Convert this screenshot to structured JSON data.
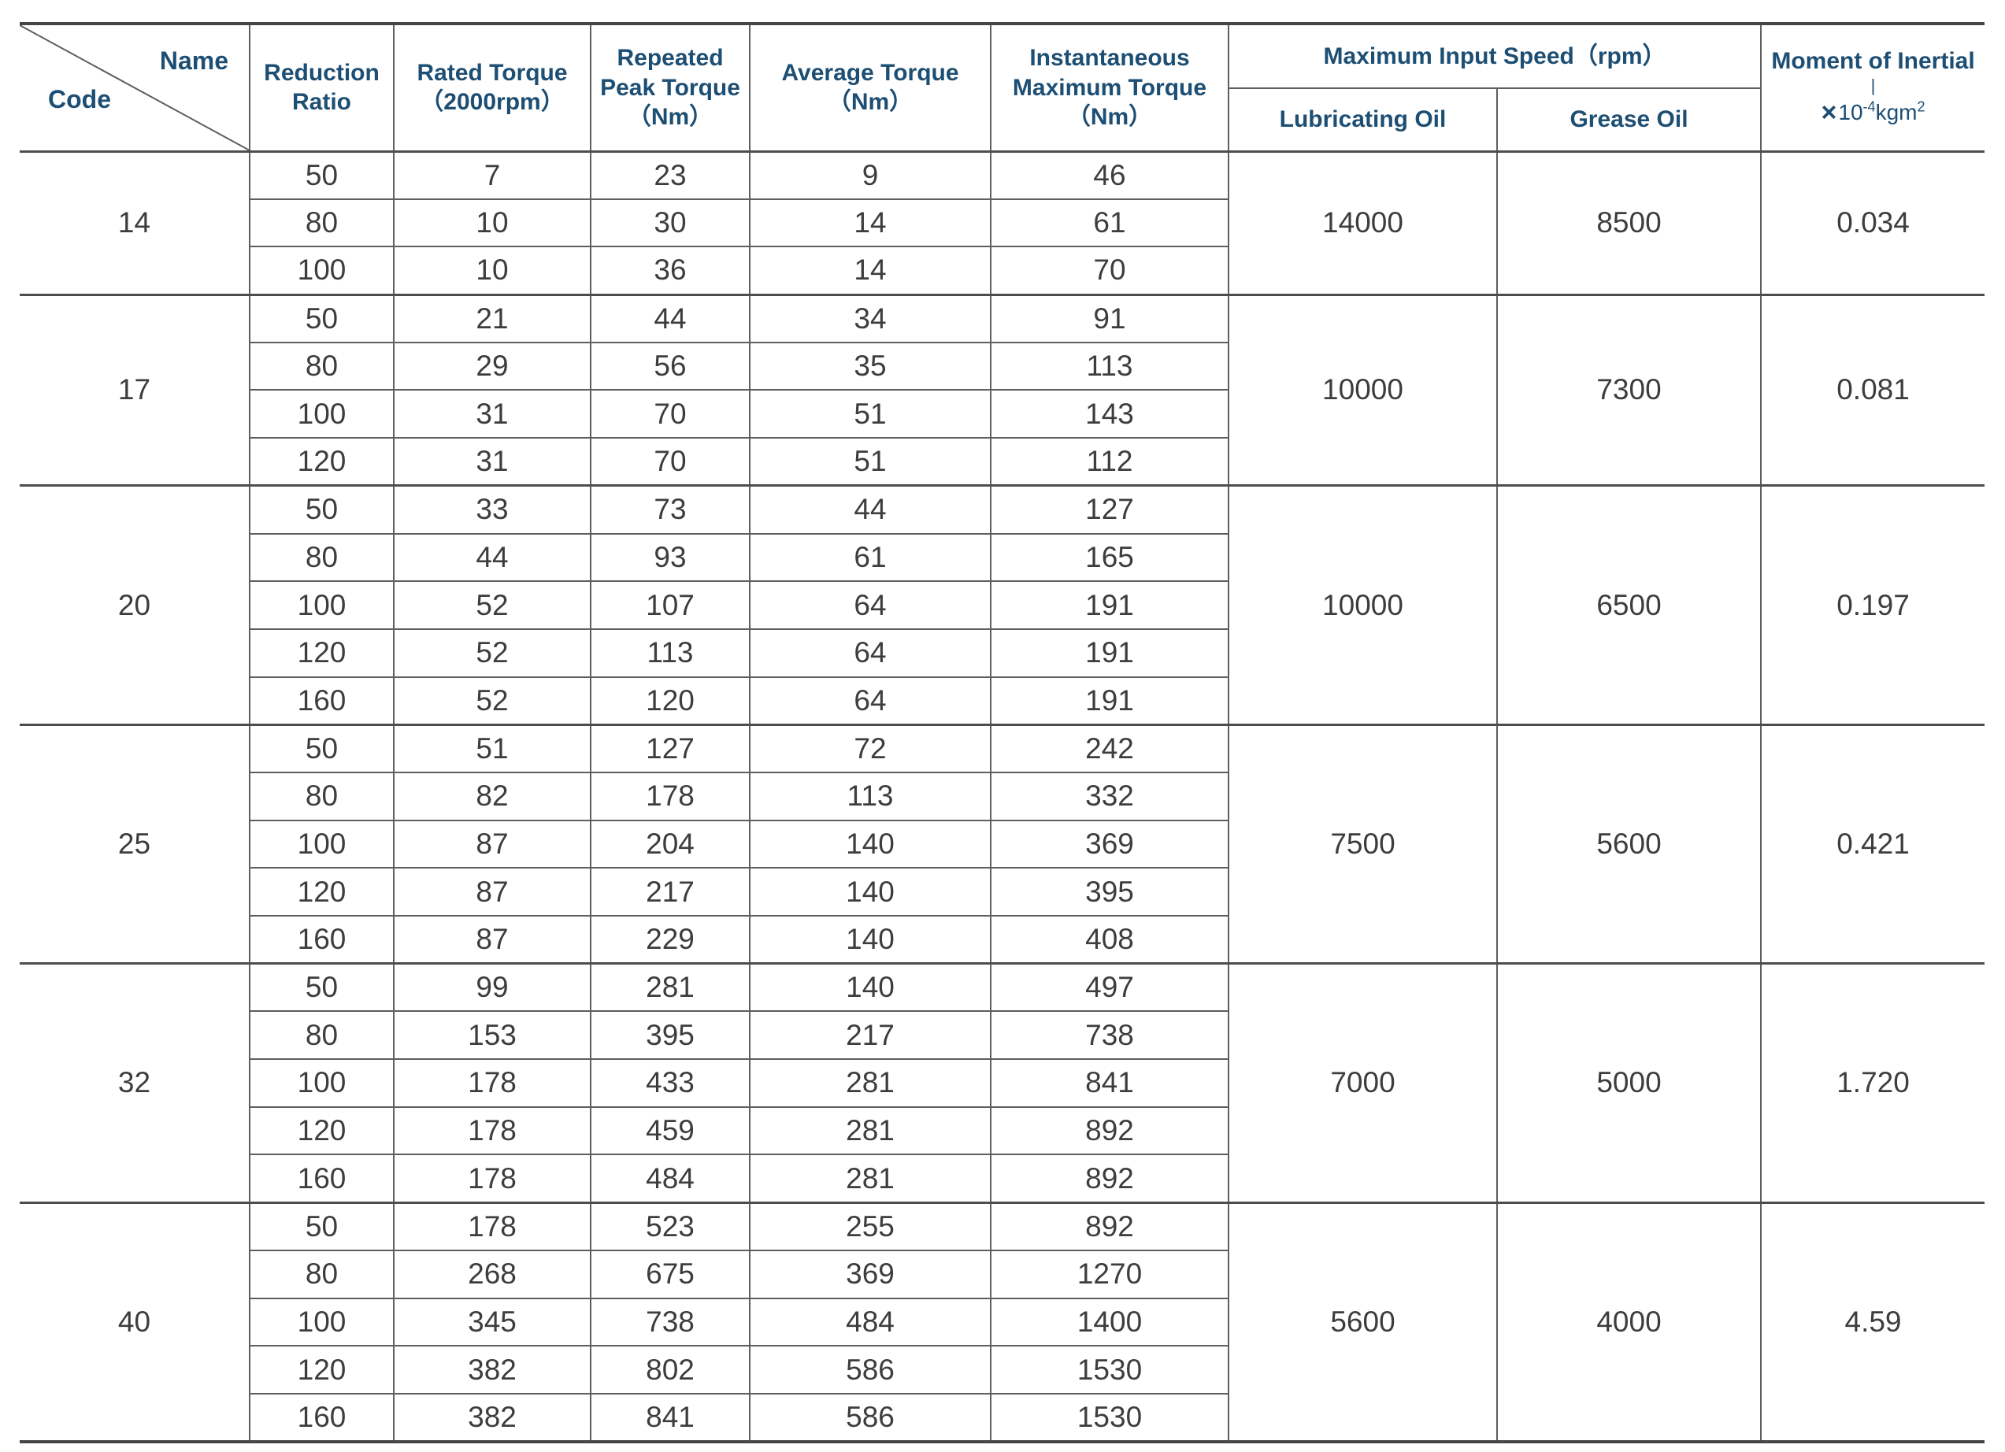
{
  "header": {
    "corner_name": "Name",
    "corner_code": "Code",
    "reduction_l1": "Reduction",
    "reduction_l2": "Ratio",
    "rated_l1": "Rated Torque",
    "rated_l2": "（2000rpm）",
    "peak_l1": "Repeated",
    "peak_l2": "Peak Torque",
    "peak_l3": "（Nm）",
    "avg_l1": "Average Torque",
    "avg_l2": "（Nm）",
    "inst_l1": "Instantaneous",
    "inst_l2": "Maximum Torque",
    "inst_l3": "（Nm）",
    "max_input_speed": "Maximum Input Speed（rpm）",
    "lubricating_oil": "Lubricating Oil",
    "grease_oil": "Grease Oil",
    "moment_title": "Moment of Inertial",
    "moment_divider": "|",
    "moment_times": "×",
    "moment_base": "10",
    "moment_sup": "-4",
    "moment_unit": "kgm",
    "moment_unit_sup": "2"
  },
  "colors": {
    "header_text": "#1d4e73",
    "body_text": "#3d3d3d",
    "grid_line": "#5e5e5e",
    "group_line": "#4d4d4d",
    "outer_line": "#454545"
  },
  "groups": [
    {
      "code": "14",
      "lubricating_speed": "14000",
      "grease_speed": "8500",
      "inertia": "0.034",
      "rows": [
        {
          "ratio": "50",
          "rated": "7",
          "peak": "23",
          "avg": "9",
          "inst": "46"
        },
        {
          "ratio": "80",
          "rated": "10",
          "peak": "30",
          "avg": "14",
          "inst": "61"
        },
        {
          "ratio": "100",
          "rated": "10",
          "peak": "36",
          "avg": "14",
          "inst": "70"
        }
      ]
    },
    {
      "code": "17",
      "lubricating_speed": "10000",
      "grease_speed": "7300",
      "inertia": "0.081",
      "rows": [
        {
          "ratio": "50",
          "rated": "21",
          "peak": "44",
          "avg": "34",
          "inst": "91"
        },
        {
          "ratio": "80",
          "rated": "29",
          "peak": "56",
          "avg": "35",
          "inst": "113"
        },
        {
          "ratio": "100",
          "rated": "31",
          "peak": "70",
          "avg": "51",
          "inst": "143"
        },
        {
          "ratio": "120",
          "rated": "31",
          "peak": "70",
          "avg": "51",
          "inst": "112"
        }
      ]
    },
    {
      "code": "20",
      "lubricating_speed": "10000",
      "grease_speed": "6500",
      "inertia": "0.197",
      "rows": [
        {
          "ratio": "50",
          "rated": "33",
          "peak": "73",
          "avg": "44",
          "inst": "127"
        },
        {
          "ratio": "80",
          "rated": "44",
          "peak": "93",
          "avg": "61",
          "inst": "165"
        },
        {
          "ratio": "100",
          "rated": "52",
          "peak": "107",
          "avg": "64",
          "inst": "191"
        },
        {
          "ratio": "120",
          "rated": "52",
          "peak": "113",
          "avg": "64",
          "inst": "191"
        },
        {
          "ratio": "160",
          "rated": "52",
          "peak": "120",
          "avg": "64",
          "inst": "191"
        }
      ]
    },
    {
      "code": "25",
      "lubricating_speed": "7500",
      "grease_speed": "5600",
      "inertia": "0.421",
      "rows": [
        {
          "ratio": "50",
          "rated": "51",
          "peak": "127",
          "avg": "72",
          "inst": "242"
        },
        {
          "ratio": "80",
          "rated": "82",
          "peak": "178",
          "avg": "113",
          "inst": "332"
        },
        {
          "ratio": "100",
          "rated": "87",
          "peak": "204",
          "avg": "140",
          "inst": "369"
        },
        {
          "ratio": "120",
          "rated": "87",
          "peak": "217",
          "avg": "140",
          "inst": "395"
        },
        {
          "ratio": "160",
          "rated": "87",
          "peak": "229",
          "avg": "140",
          "inst": "408"
        }
      ]
    },
    {
      "code": "32",
      "lubricating_speed": "7000",
      "grease_speed": "5000",
      "inertia": "1.720",
      "rows": [
        {
          "ratio": "50",
          "rated": "99",
          "peak": "281",
          "avg": "140",
          "inst": "497"
        },
        {
          "ratio": "80",
          "rated": "153",
          "peak": "395",
          "avg": "217",
          "inst": "738"
        },
        {
          "ratio": "100",
          "rated": "178",
          "peak": "433",
          "avg": "281",
          "inst": "841"
        },
        {
          "ratio": "120",
          "rated": "178",
          "peak": "459",
          "avg": "281",
          "inst": "892"
        },
        {
          "ratio": "160",
          "rated": "178",
          "peak": "484",
          "avg": "281",
          "inst": "892"
        }
      ]
    },
    {
      "code": "40",
      "lubricating_speed": "5600",
      "grease_speed": "4000",
      "inertia": "4.59",
      "rows": [
        {
          "ratio": "50",
          "rated": "178",
          "peak": "523",
          "avg": "255",
          "inst": "892"
        },
        {
          "ratio": "80",
          "rated": "268",
          "peak": "675",
          "avg": "369",
          "inst": "1270"
        },
        {
          "ratio": "100",
          "rated": "345",
          "peak": "738",
          "avg": "484",
          "inst": "1400"
        },
        {
          "ratio": "120",
          "rated": "382",
          "peak": "802",
          "avg": "586",
          "inst": "1530"
        },
        {
          "ratio": "160",
          "rated": "382",
          "peak": "841",
          "avg": "586",
          "inst": "1530"
        }
      ]
    }
  ]
}
